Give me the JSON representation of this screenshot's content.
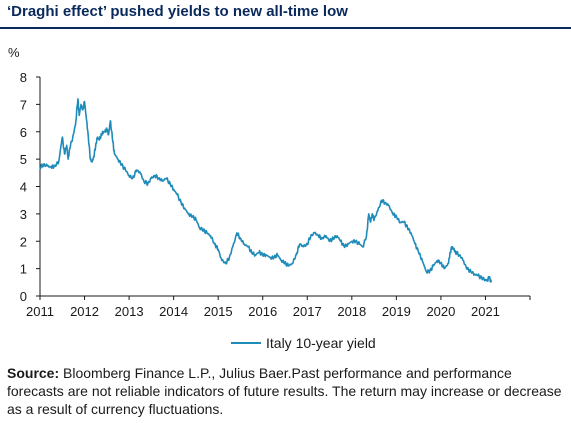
{
  "title": "‘Draghi effect’ pushed yields to new all-time low",
  "source": {
    "label": "Source:",
    "text": "Bloomberg Finance L.P., Julius Baer.Past performance and performance forecasts are not reliable indicators of future results. The return may increase or decrease as a result of currency fluctuations."
  },
  "colors": {
    "title": "#0a2a5c",
    "series": "#1f8bb8"
  },
  "chart_data": {
    "type": "line",
    "ylabel": "%",
    "ylim": [
      0,
      8
    ],
    "yticks": [
      0,
      1,
      2,
      3,
      4,
      5,
      6,
      7,
      8
    ],
    "xlim": [
      2011,
      2022
    ],
    "xticks": [
      "2011",
      "2012",
      "2013",
      "2014",
      "2015",
      "2016",
      "2017",
      "2018",
      "2019",
      "2020",
      "2021"
    ],
    "grid": false,
    "legend_position": "bottom-center",
    "series": [
      {
        "name": "Italy 10-year yield",
        "color": "#1f8bb8",
        "x": [
          2011.0,
          2011.08,
          2011.17,
          2011.25,
          2011.33,
          2011.42,
          2011.5,
          2011.55,
          2011.6,
          2011.63,
          2011.67,
          2011.75,
          2011.8,
          2011.85,
          2011.88,
          2011.92,
          2011.96,
          2012.0,
          2012.04,
          2012.08,
          2012.13,
          2012.17,
          2012.21,
          2012.25,
          2012.29,
          2012.33,
          2012.38,
          2012.42,
          2012.46,
          2012.5,
          2012.54,
          2012.58,
          2012.63,
          2012.67,
          2012.75,
          2012.83,
          2012.92,
          2013.0,
          2013.08,
          2013.17,
          2013.25,
          2013.33,
          2013.42,
          2013.5,
          2013.58,
          2013.67,
          2013.75,
          2013.83,
          2013.92,
          2014.0,
          2014.08,
          2014.17,
          2014.25,
          2014.33,
          2014.42,
          2014.5,
          2014.58,
          2014.67,
          2014.75,
          2014.83,
          2014.92,
          2015.0,
          2015.08,
          2015.17,
          2015.25,
          2015.33,
          2015.42,
          2015.5,
          2015.58,
          2015.67,
          2015.75,
          2015.83,
          2015.92,
          2016.0,
          2016.08,
          2016.17,
          2016.25,
          2016.33,
          2016.42,
          2016.5,
          2016.58,
          2016.67,
          2016.75,
          2016.83,
          2016.92,
          2017.0,
          2017.08,
          2017.17,
          2017.25,
          2017.33,
          2017.42,
          2017.5,
          2017.58,
          2017.67,
          2017.75,
          2017.83,
          2017.92,
          2018.0,
          2018.08,
          2018.17,
          2018.25,
          2018.33,
          2018.38,
          2018.42,
          2018.46,
          2018.5,
          2018.58,
          2018.67,
          2018.75,
          2018.83,
          2018.92,
          2019.0,
          2019.08,
          2019.17,
          2019.25,
          2019.33,
          2019.42,
          2019.5,
          2019.58,
          2019.67,
          2019.75,
          2019.83,
          2019.92,
          2020.0,
          2020.08,
          2020.17,
          2020.21,
          2020.25,
          2020.29,
          2020.33,
          2020.42,
          2020.5,
          2020.58,
          2020.67,
          2020.75,
          2020.83,
          2020.92,
          2021.0,
          2021.04,
          2021.08,
          2021.13
        ],
        "values": [
          4.7,
          4.8,
          4.75,
          4.7,
          4.75,
          4.9,
          5.8,
          5.2,
          5.5,
          5.0,
          5.4,
          5.9,
          6.3,
          7.2,
          6.6,
          7.0,
          6.8,
          7.1,
          6.5,
          5.9,
          5.0,
          4.9,
          5.1,
          5.5,
          5.8,
          5.7,
          5.9,
          6.0,
          6.0,
          6.1,
          5.9,
          6.4,
          5.7,
          5.2,
          5.0,
          4.8,
          4.6,
          4.4,
          4.3,
          4.6,
          4.5,
          4.2,
          4.1,
          4.3,
          4.4,
          4.3,
          4.2,
          4.3,
          4.1,
          3.9,
          3.7,
          3.4,
          3.2,
          3.0,
          2.9,
          2.8,
          2.5,
          2.4,
          2.3,
          2.2,
          1.9,
          1.7,
          1.3,
          1.2,
          1.4,
          1.8,
          2.3,
          2.1,
          1.9,
          1.8,
          1.6,
          1.5,
          1.6,
          1.5,
          1.5,
          1.4,
          1.4,
          1.5,
          1.3,
          1.2,
          1.1,
          1.2,
          1.5,
          1.9,
          1.8,
          1.9,
          2.2,
          2.3,
          2.2,
          2.1,
          2.2,
          2.0,
          2.1,
          2.2,
          2.0,
          1.8,
          1.9,
          2.0,
          2.0,
          1.9,
          1.8,
          2.2,
          3.0,
          2.7,
          3.0,
          2.8,
          3.1,
          3.5,
          3.4,
          3.3,
          3.0,
          2.9,
          2.7,
          2.7,
          2.5,
          2.3,
          1.9,
          1.6,
          1.3,
          0.9,
          0.9,
          1.1,
          1.3,
          1.2,
          1.0,
          1.2,
          1.6,
          1.8,
          1.7,
          1.6,
          1.5,
          1.3,
          1.0,
          0.9,
          0.8,
          0.75,
          0.65,
          0.6,
          0.55,
          0.7,
          0.5
        ]
      }
    ]
  }
}
